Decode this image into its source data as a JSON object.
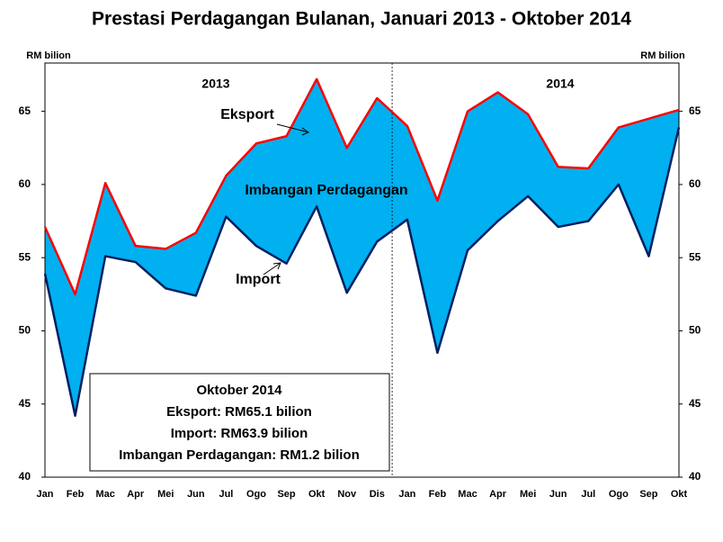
{
  "chart_data": {
    "type": "line",
    "title": "Prestasi Perdagangan Bulanan, Januari 2013 - Oktober 2014",
    "y_label": "RM bilion",
    "y2_label": "RM bilion",
    "categories": [
      "Jan",
      "Feb",
      "Mac",
      "Apr",
      "Mei",
      "Jun",
      "Jul",
      "Ogo",
      "Sep",
      "Okt",
      "Nov",
      "Dis",
      "Jan",
      "Feb",
      "Mac",
      "Apr",
      "Mei",
      "Jun",
      "Jul",
      "Ogo",
      "Sep",
      "Okt"
    ],
    "series": [
      {
        "name": "Eksport",
        "color": "#ff0000",
        "values": [
          57.1,
          52.5,
          60.1,
          55.8,
          55.6,
          56.7,
          60.6,
          62.8,
          63.3,
          67.2,
          62.5,
          65.9,
          64.0,
          58.9,
          65.0,
          66.3,
          64.8,
          61.2,
          61.1,
          63.9,
          64.5,
          65.1
        ]
      },
      {
        "name": "Import",
        "color": "#002060",
        "values": [
          53.9,
          44.2,
          55.1,
          54.7,
          52.9,
          52.4,
          57.8,
          55.8,
          54.6,
          58.5,
          52.6,
          56.1,
          57.6,
          48.5,
          55.5,
          57.5,
          59.2,
          57.1,
          57.5,
          60.0,
          55.1,
          63.9
        ]
      }
    ],
    "fill_label": "Imbangan Perdagangan",
    "fill_color": "#00b0f0",
    "year_labels": [
      "2013",
      "2014"
    ],
    "info_box": [
      "Oktober 2014",
      "Eksport: RM65.1 bilion",
      "Import: RM63.9 bilion",
      "Imbangan Perdagangan: RM1.2 bilion"
    ],
    "ylim": [
      40,
      68.3
    ],
    "yticks": [
      40,
      45,
      50,
      55,
      60,
      65
    ],
    "y2lim": [
      40,
      68.3
    ],
    "y2ticks": [
      40,
      45,
      50,
      55,
      60,
      65
    ],
    "grid": false
  }
}
